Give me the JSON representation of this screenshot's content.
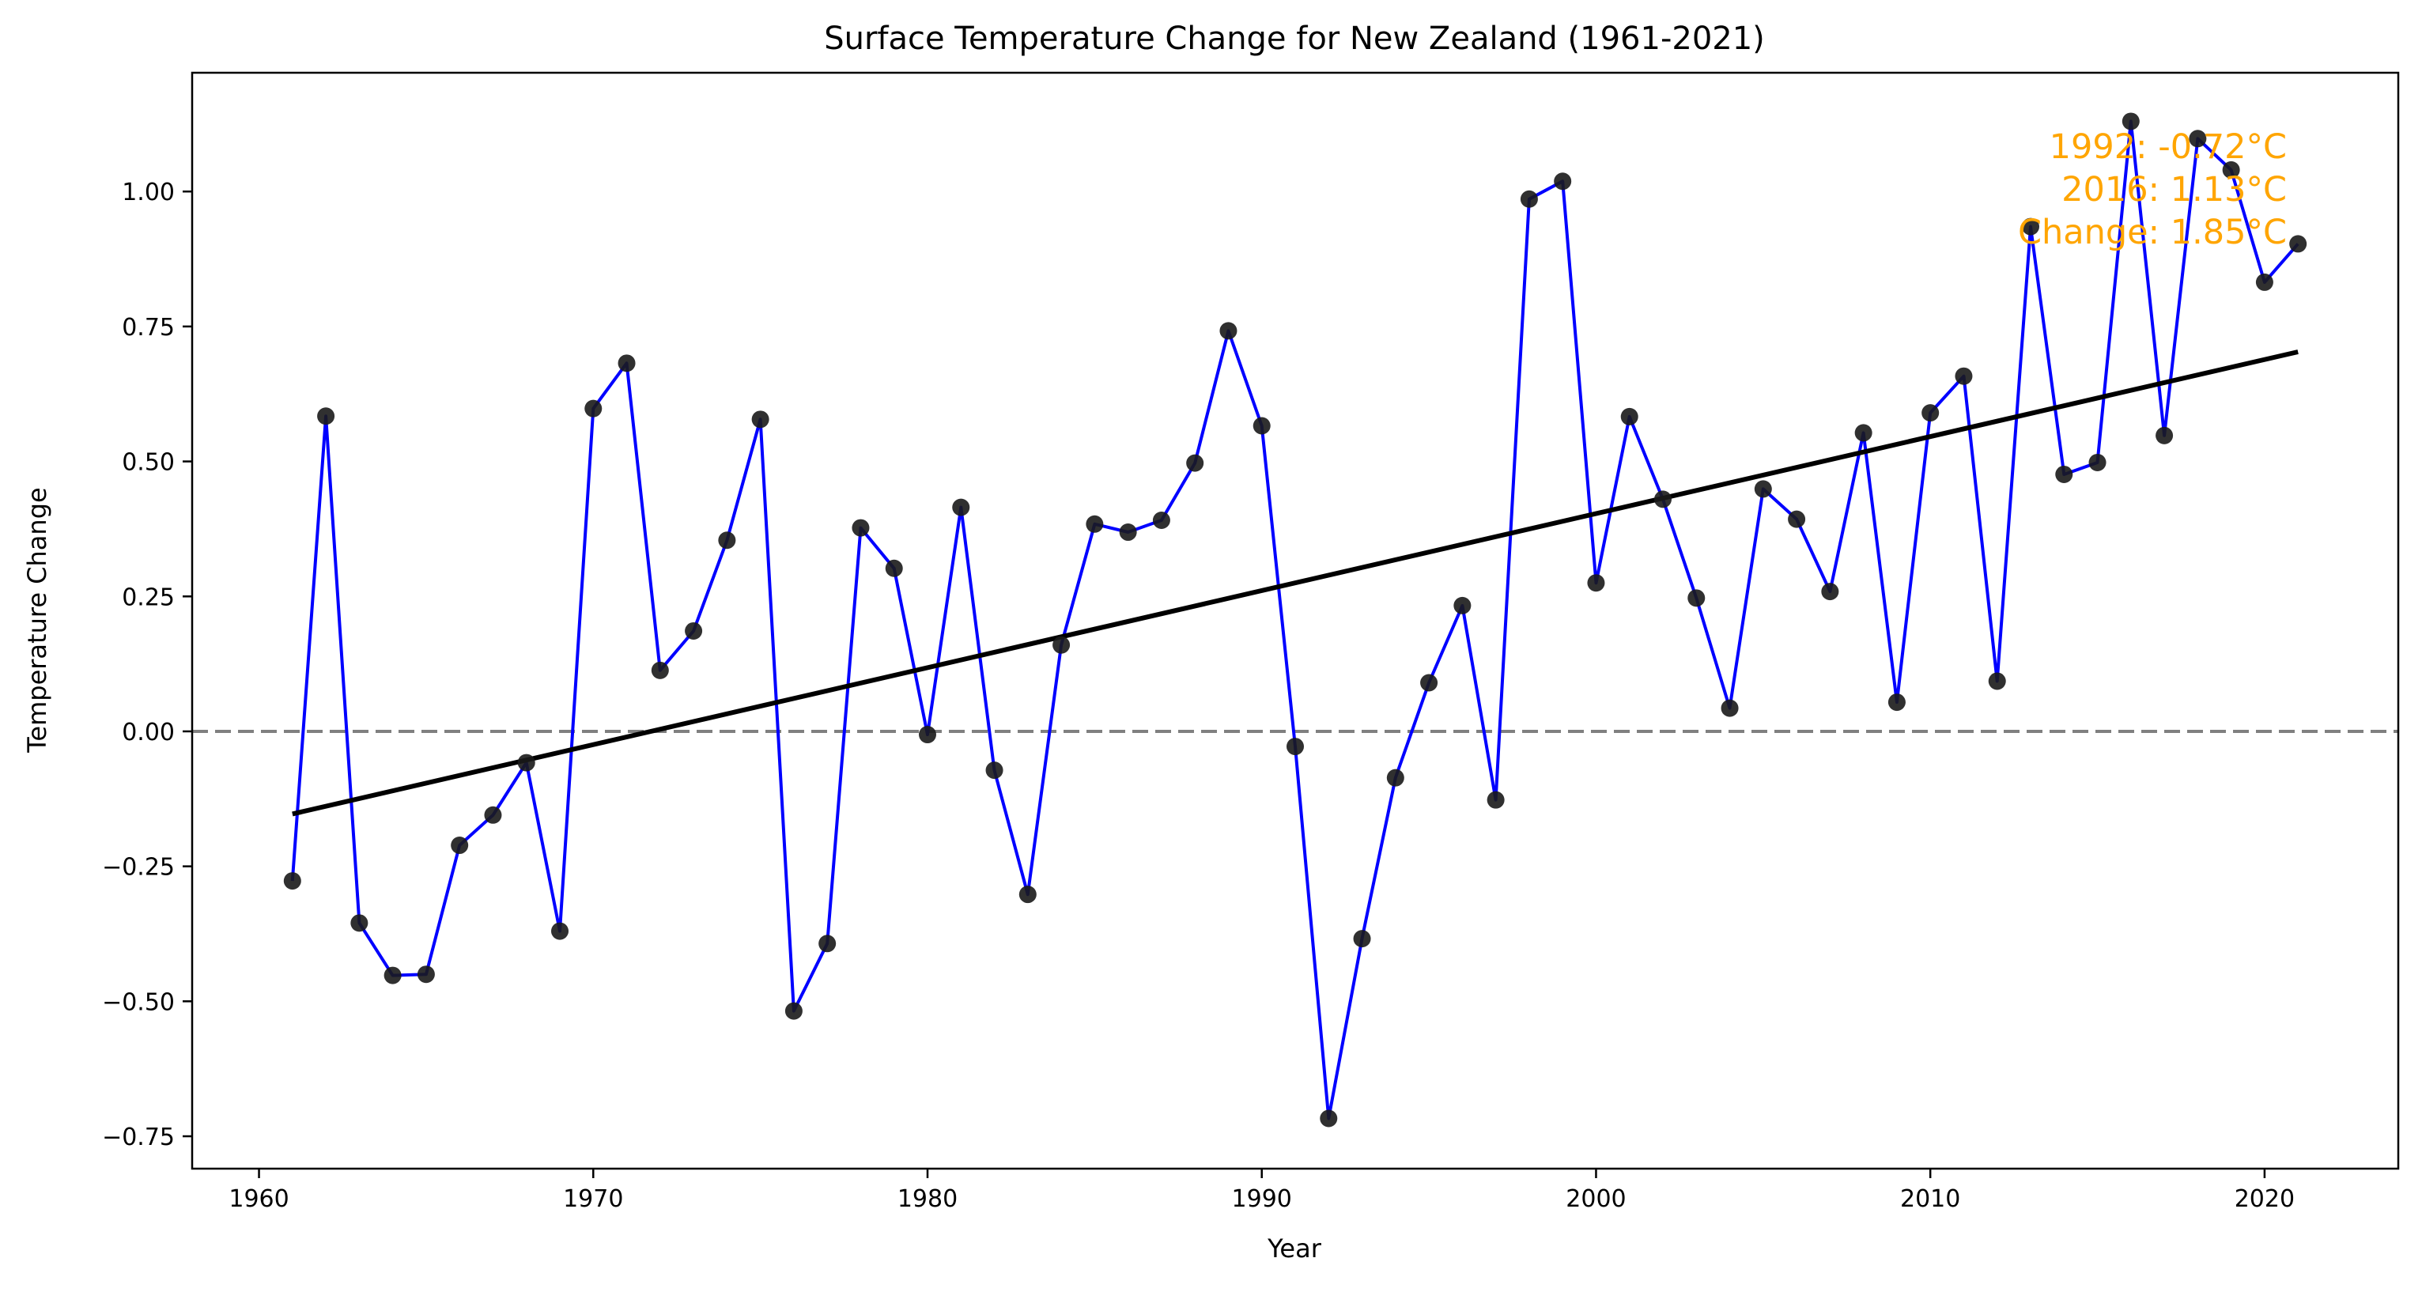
{
  "chart_data": {
    "type": "line",
    "title": "Surface Temperature Change for New Zealand (1961-2021)",
    "xlabel": "Year",
    "ylabel": "Temperature Change",
    "xlim": [
      1958,
      2024
    ],
    "ylim": [
      -0.81,
      1.22
    ],
    "x_ticks": [
      1960,
      1970,
      1980,
      1990,
      2000,
      2010,
      2020
    ],
    "y_ticks": [
      -0.75,
      -0.5,
      -0.25,
      0.0,
      0.25,
      0.5,
      0.75,
      1.0
    ],
    "y_tick_labels": [
      "−0.75",
      "−0.50",
      "−0.25",
      "0.00",
      "0.25",
      "0.50",
      "0.75",
      "1.00"
    ],
    "grid": false,
    "series": [
      {
        "x": [
          1961,
          1962,
          1963,
          1964,
          1965,
          1966,
          1967,
          1968,
          1969,
          1970,
          1971,
          1972,
          1973,
          1974,
          1975,
          1976,
          1977,
          1978,
          1979,
          1980,
          1981,
          1982,
          1983,
          1984,
          1985,
          1986,
          1987,
          1988,
          1989,
          1990,
          1991,
          1992,
          1993,
          1994,
          1995,
          1996,
          1997,
          1998,
          1999,
          2000,
          2001,
          2002,
          2003,
          2004,
          2005,
          2006,
          2007,
          2008,
          2009,
          2010,
          2011,
          2012,
          2013,
          2014,
          2015,
          2016,
          2017,
          2018,
          2019,
          2020,
          2021
        ],
        "values": [
          -0.277,
          0.584,
          -0.355,
          -0.452,
          -0.45,
          -0.211,
          -0.155,
          -0.058,
          -0.37,
          0.598,
          0.682,
          0.113,
          0.186,
          0.354,
          0.578,
          -0.518,
          -0.393,
          0.377,
          0.302,
          -0.006,
          0.415,
          -0.072,
          -0.302,
          0.16,
          0.384,
          0.369,
          0.391,
          0.497,
          0.742,
          0.566,
          -0.028,
          -0.717,
          -0.384,
          -0.086,
          0.09,
          0.233,
          -0.127,
          0.986,
          1.019,
          0.275,
          0.583,
          0.43,
          0.247,
          0.043,
          0.449,
          0.393,
          0.259,
          0.553,
          0.054,
          0.59,
          0.658,
          0.093,
          0.935,
          0.476,
          0.498,
          1.13,
          0.548,
          1.098,
          1.04,
          0.832,
          0.903
        ],
        "line_color": "#0000ff",
        "marker_color": "#1a1a1a"
      }
    ],
    "trend_line": {
      "x": [
        1961,
        2021
      ],
      "values": [
        -0.153,
        0.703
      ],
      "color": "#000000"
    },
    "zero_line": {
      "y": 0,
      "color": "#808080",
      "style": "dashed"
    },
    "annotation": {
      "lines": [
        "1992: -0.72°C",
        "2016: 1.13°C",
        "Change: 1.85°C"
      ],
      "color": "#FFA500",
      "placement": "top-right"
    }
  }
}
